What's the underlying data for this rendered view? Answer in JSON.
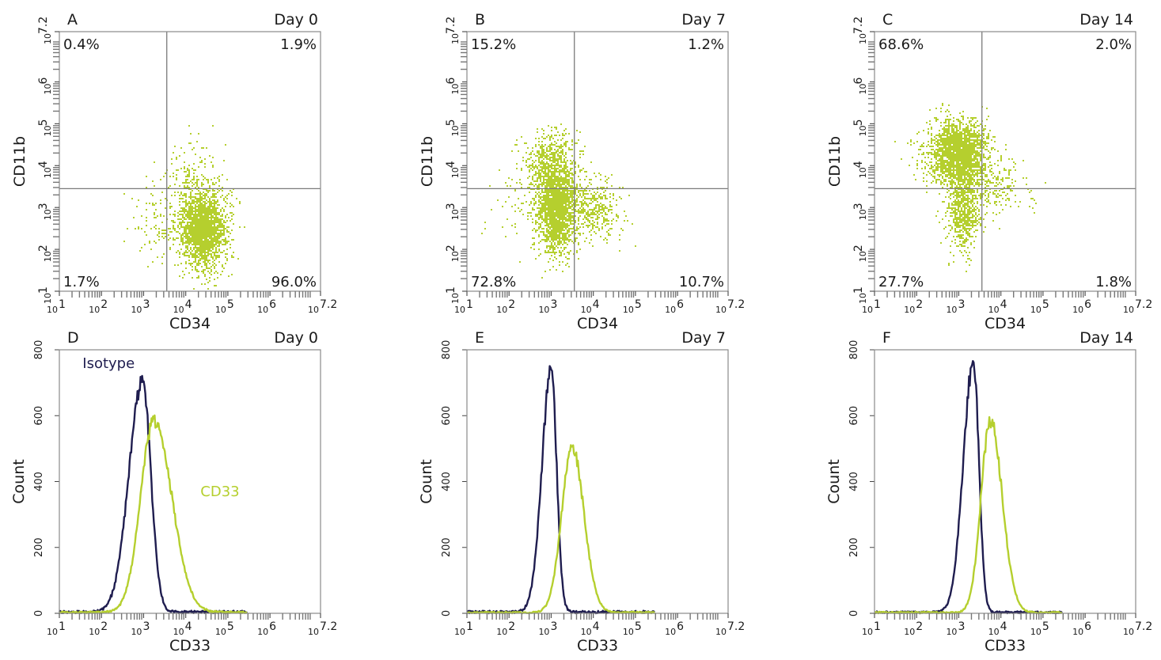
{
  "colors": {
    "cd33": "#b5cf2e",
    "isotype": "#1f1d4f",
    "quad_line": "#7a7a7a",
    "frame": "#8a8a8a"
  },
  "chart_data": [
    {
      "type": "scatter",
      "panel": "A",
      "day": "Day 0",
      "xlabel": "CD34",
      "ylabel": "CD11b",
      "xscale": "log",
      "yscale": "log",
      "xlim": [
        1,
        7.2
      ],
      "ylim": [
        1,
        7.2
      ],
      "x_ticks": [
        "1",
        "2",
        "3",
        "4",
        "5",
        "6",
        "7.2"
      ],
      "y_ticks": [
        "1",
        "2",
        "3",
        "4",
        "5",
        "6",
        "7.2"
      ],
      "gate": {
        "x": 3.55,
        "y": 3.45
      },
      "quadrants": {
        "upper_left": "0.4%",
        "upper_right": "1.9%",
        "lower_left": "1.7%",
        "lower_right": "96.0%"
      },
      "clusters": [
        {
          "cx": 4.4,
          "cy": 2.5,
          "sx": 0.28,
          "sy": 0.45,
          "n": 2200
        },
        {
          "cx": 4.1,
          "cy": 3.6,
          "sx": 0.35,
          "sy": 0.55,
          "n": 180
        },
        {
          "cx": 3.3,
          "cy": 2.6,
          "sx": 0.35,
          "sy": 0.45,
          "n": 100
        }
      ]
    },
    {
      "type": "scatter",
      "panel": "B",
      "day": "Day 7",
      "xlabel": "CD34",
      "ylabel": "CD11b",
      "xscale": "log",
      "yscale": "log",
      "xlim": [
        1,
        7.2
      ],
      "ylim": [
        1,
        7.2
      ],
      "x_ticks": [
        "1",
        "2",
        "3",
        "4",
        "5",
        "6",
        "7.2"
      ],
      "y_ticks": [
        "1",
        "2",
        "3",
        "4",
        "5",
        "6",
        "7.2"
      ],
      "gate": {
        "x": 3.55,
        "y": 3.45
      },
      "quadrants": {
        "upper_left": "15.2%",
        "upper_right": "1.2%",
        "lower_left": "72.8%",
        "lower_right": "10.7%"
      },
      "clusters": [
        {
          "cx": 3.1,
          "cy": 3.0,
          "sx": 0.22,
          "sy": 0.55,
          "n": 1800
        },
        {
          "cx": 3.0,
          "cy": 4.1,
          "sx": 0.32,
          "sy": 0.4,
          "n": 500
        },
        {
          "cx": 3.9,
          "cy": 3.0,
          "sx": 0.38,
          "sy": 0.35,
          "n": 450
        },
        {
          "cx": 2.6,
          "cy": 3.2,
          "sx": 0.45,
          "sy": 0.6,
          "n": 150
        }
      ]
    },
    {
      "type": "scatter",
      "panel": "C",
      "day": "Day 14",
      "xlabel": "CD34",
      "ylabel": "CD11b",
      "xscale": "log",
      "yscale": "log",
      "xlim": [
        1,
        7.2
      ],
      "ylim": [
        1,
        7.2
      ],
      "x_ticks": [
        "1",
        "2",
        "3",
        "4",
        "5",
        "6",
        "7.2"
      ],
      "y_ticks": [
        "1",
        "2",
        "3",
        "4",
        "5",
        "6",
        "7.2"
      ],
      "gate": {
        "x": 3.55,
        "y": 3.45
      },
      "quadrants": {
        "upper_left": "68.6%",
        "upper_right": "2.0%",
        "lower_left": "27.7%",
        "lower_right": "1.8%"
      },
      "clusters": [
        {
          "cx": 3.0,
          "cy": 4.3,
          "sx": 0.32,
          "sy": 0.4,
          "n": 2000
        },
        {
          "cx": 3.1,
          "cy": 3.0,
          "sx": 0.2,
          "sy": 0.55,
          "n": 700
        },
        {
          "cx": 3.8,
          "cy": 3.5,
          "sx": 0.4,
          "sy": 0.35,
          "n": 220
        },
        {
          "cx": 2.4,
          "cy": 4.3,
          "sx": 0.35,
          "sy": 0.3,
          "n": 120
        }
      ]
    },
    {
      "type": "line",
      "panel": "D",
      "day": "Day 0",
      "xlabel": "CD33",
      "ylabel": "Count",
      "xscale": "log",
      "xlim": [
        1,
        7.2
      ],
      "ylim": [
        0,
        800
      ],
      "x_ticks": [
        "1",
        "2",
        "3",
        "4",
        "5",
        "6",
        "7.2"
      ],
      "y_ticks": [
        0,
        200,
        400,
        600,
        800
      ],
      "annotations": [
        "Isotype",
        "CD33"
      ],
      "series": [
        {
          "name": "Isotype",
          "color": "#1f1d4f",
          "peak_x": 2.97,
          "peak_y": 700,
          "sd_left": 0.32,
          "sd_right": 0.2,
          "floor": 8
        },
        {
          "name": "CD33",
          "color": "#b5cf2e",
          "peak_x": 3.25,
          "peak_y": 580,
          "sd_left": 0.32,
          "sd_right": 0.42,
          "floor": 6
        }
      ]
    },
    {
      "type": "line",
      "panel": "E",
      "day": "Day 7",
      "xlabel": "CD33",
      "ylabel": "Count",
      "xscale": "log",
      "xlim": [
        1,
        7.2
      ],
      "ylim": [
        0,
        800
      ],
      "x_ticks": [
        "1",
        "2",
        "3",
        "4",
        "5",
        "6",
        "7.2"
      ],
      "y_ticks": [
        0,
        200,
        400,
        600,
        800
      ],
      "annotations": [],
      "series": [
        {
          "name": "Isotype",
          "color": "#1f1d4f",
          "peak_x": 3.0,
          "peak_y": 735,
          "sd_left": 0.22,
          "sd_right": 0.13,
          "floor": 8
        },
        {
          "name": "CD33",
          "color": "#b5cf2e",
          "peak_x": 3.5,
          "peak_y": 498,
          "sd_left": 0.25,
          "sd_right": 0.28,
          "floor": 5
        }
      ]
    },
    {
      "type": "line",
      "panel": "F",
      "day": "Day 14",
      "xlabel": "CD33",
      "ylabel": "Count",
      "xscale": "log",
      "xlim": [
        1,
        7.2
      ],
      "ylim": [
        0,
        800
      ],
      "x_ticks": [
        "1",
        "2",
        "3",
        "4",
        "5",
        "6",
        "7.2"
      ],
      "y_ticks": [
        0,
        200,
        400,
        600,
        800
      ],
      "annotations": [],
      "series": [
        {
          "name": "Isotype",
          "color": "#1f1d4f",
          "peak_x": 3.35,
          "peak_y": 762,
          "sd_left": 0.24,
          "sd_right": 0.13,
          "floor": 6
        },
        {
          "name": "CD33",
          "color": "#b5cf2e",
          "peak_x": 3.75,
          "peak_y": 585,
          "sd_left": 0.22,
          "sd_right": 0.28,
          "floor": 5
        }
      ]
    }
  ]
}
